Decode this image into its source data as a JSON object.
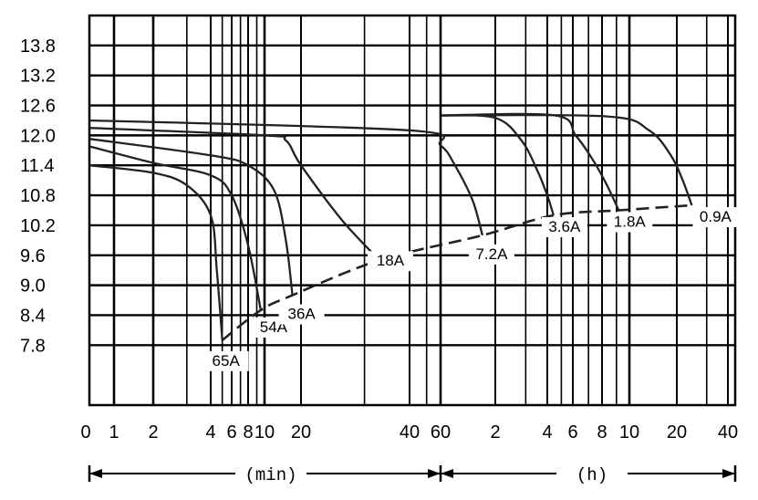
{
  "chart_data": {
    "type": "line",
    "title": "",
    "xlabel": "",
    "ylabel": "",
    "x_scale": "log",
    "x_ticks": [
      {
        "label": "0",
        "min": 0
      },
      {
        "label": "1",
        "min": 1
      },
      {
        "label": "2",
        "min": 2
      },
      {
        "label": "4",
        "min": 4
      },
      {
        "label": "6",
        "min": 6
      },
      {
        "label": "8",
        "min": 8
      },
      {
        "label": "10",
        "min": 10
      },
      {
        "label": "20",
        "min": 20
      },
      {
        "label": "40",
        "min": 40
      },
      {
        "label": "60",
        "min": 60
      },
      {
        "label": "2",
        "min": 120
      },
      {
        "label": "4",
        "min": 240
      },
      {
        "label": "6",
        "min": 360
      },
      {
        "label": "8",
        "min": 480
      },
      {
        "label": "10",
        "min": 600
      },
      {
        "label": "20",
        "min": 1200
      },
      {
        "label": "40",
        "min": 2400
      }
    ],
    "x_unit_labels": {
      "minutes": "(min)",
      "hours": "(h)"
    },
    "y_ticks": [
      "13.8",
      "13.2",
      "12.6",
      "12.0",
      "11.4",
      "10.8",
      "10.2",
      "9.6",
      "9.0",
      "8.4",
      "7.8"
    ],
    "ylim": [
      6.6,
      14.4
    ],
    "grid": true,
    "series": [
      {
        "name": "65A",
        "x": [
          1,
          2,
          3,
          4,
          4.5,
          5
        ],
        "y": [
          11.4,
          11.25,
          11.0,
          10.4,
          9.3,
          7.9
        ]
      },
      {
        "name": "54A",
        "x": [
          1,
          2,
          4,
          6,
          8,
          9.5
        ],
        "y": [
          11.78,
          11.45,
          11.2,
          10.8,
          9.8,
          8.5
        ]
      },
      {
        "name": "36A",
        "x": [
          1,
          4,
          8,
          12,
          15,
          17
        ],
        "y": [
          11.93,
          11.6,
          11.4,
          10.9,
          9.9,
          8.8
        ]
      },
      {
        "name": "18A",
        "x": [
          1,
          10,
          15,
          20,
          26,
          33
        ],
        "y": [
          12.15,
          12.0,
          11.9,
          11.4,
          10.3,
          9.5
        ]
      },
      {
        "name": "7.2A",
        "x": [
          1,
          40,
          60,
          72,
          90,
          102
        ],
        "y": [
          12.3,
          12.1,
          11.8,
          11.4,
          10.7,
          10.0
        ]
      },
      {
        "name": "3.6A",
        "x": [
          60,
          120,
          170,
          210,
          240,
          265
        ],
        "y": [
          12.4,
          12.35,
          11.9,
          11.3,
          10.8,
          10.4
        ]
      },
      {
        "name": "1.8A",
        "x": [
          60,
          270,
          370,
          440,
          500,
          550
        ],
        "y": [
          12.4,
          12.4,
          12.0,
          11.5,
          11.0,
          10.5
        ]
      },
      {
        "name": "0.9A",
        "x": [
          60,
          500,
          800,
          1100,
          1300,
          1470
        ],
        "y": [
          12.4,
          12.38,
          12.1,
          11.6,
          11.1,
          10.6
        ]
      }
    ]
  }
}
